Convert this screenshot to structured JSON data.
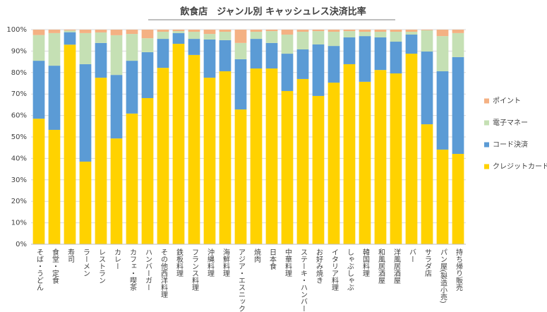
{
  "chart_data": {
    "type": "stacked_bar",
    "title": "飲食店　ジャンル別 キャッシュレス決済比率",
    "categories": [
      "そば・うどん",
      "食堂・定食",
      "寿司",
      "ラーメン",
      "レストラン",
      "カレー",
      "カフェ・喫茶",
      "ハンバーガー",
      "その他西洋料理",
      "鉄板料理",
      "フランス料理",
      "沖縄料理",
      "海鮮料理",
      "アジア・エスニック",
      "焼肉",
      "日本食",
      "中華料理",
      "ステーキ・ハンバーグ",
      "お好み焼き",
      "イタリア料理",
      "しゃぶしゃぶ",
      "韓国料理",
      "和風居酒屋",
      "洋風居酒屋",
      "バー",
      "サラダ店",
      "パン屋(製造小売)",
      "持ち帰り販売"
    ],
    "series": [
      {
        "name": "クレジットカード",
        "color": "#ffd200",
        "values": [
          58.5,
          53.3,
          93.0,
          38.5,
          77.6,
          49.3,
          60.9,
          68.1,
          82.2,
          93.4,
          88.2,
          77.6,
          80.6,
          62.8,
          81.9,
          81.9,
          71.4,
          77.0,
          69.1,
          75.3,
          83.9,
          75.7,
          81.2,
          79.6,
          88.8,
          55.9,
          44.1,
          42.1
        ]
      },
      {
        "name": "コード決済",
        "color": "#5b9bd5",
        "values": [
          27.0,
          29.9,
          5.8,
          45.4,
          16.2,
          29.6,
          24.6,
          21.4,
          13.5,
          5.0,
          7.5,
          17.8,
          14.5,
          23.4,
          13.8,
          11.9,
          17.4,
          13.8,
          24.0,
          17.1,
          12.5,
          21.3,
          15.2,
          14.8,
          8.9,
          33.9,
          36.5,
          45.1
        ]
      },
      {
        "name": "電子マネー",
        "color": "#c5e0b4",
        "values": [
          12.0,
          15.2,
          0.8,
          14.5,
          4.9,
          18.5,
          12.5,
          6.5,
          3.3,
          0.9,
          3.3,
          2.6,
          3.9,
          7.6,
          3.3,
          5.5,
          8.9,
          8.2,
          6.2,
          6.6,
          2.9,
          2.0,
          2.6,
          4.6,
          1.3,
          9.9,
          16.4,
          11.2
        ]
      },
      {
        "name": "ポイント",
        "color": "#f4b183",
        "values": [
          2.5,
          1.6,
          0.4,
          1.6,
          1.3,
          2.6,
          2.0,
          4.0,
          1.0,
          0.7,
          1.0,
          2.0,
          1.0,
          6.2,
          1.0,
          0.7,
          2.3,
          1.0,
          0.7,
          1.0,
          0.7,
          1.0,
          1.0,
          1.0,
          1.0,
          0.3,
          3.0,
          1.6
        ]
      }
    ],
    "ylim": [
      0,
      100
    ],
    "yticks": [
      {
        "value": 0,
        "label": "0%"
      },
      {
        "value": 10,
        "label": "10%"
      },
      {
        "value": 20,
        "label": "20%"
      },
      {
        "value": 30,
        "label": "30%"
      },
      {
        "value": 40,
        "label": "40%"
      },
      {
        "value": 50,
        "label": "50%"
      },
      {
        "value": 60,
        "label": "60%"
      },
      {
        "value": 70,
        "label": "70%"
      },
      {
        "value": 80,
        "label": "80%"
      },
      {
        "value": 90,
        "label": "90%"
      },
      {
        "value": 100,
        "label": "100%"
      }
    ],
    "grid": true,
    "legend": "right"
  }
}
